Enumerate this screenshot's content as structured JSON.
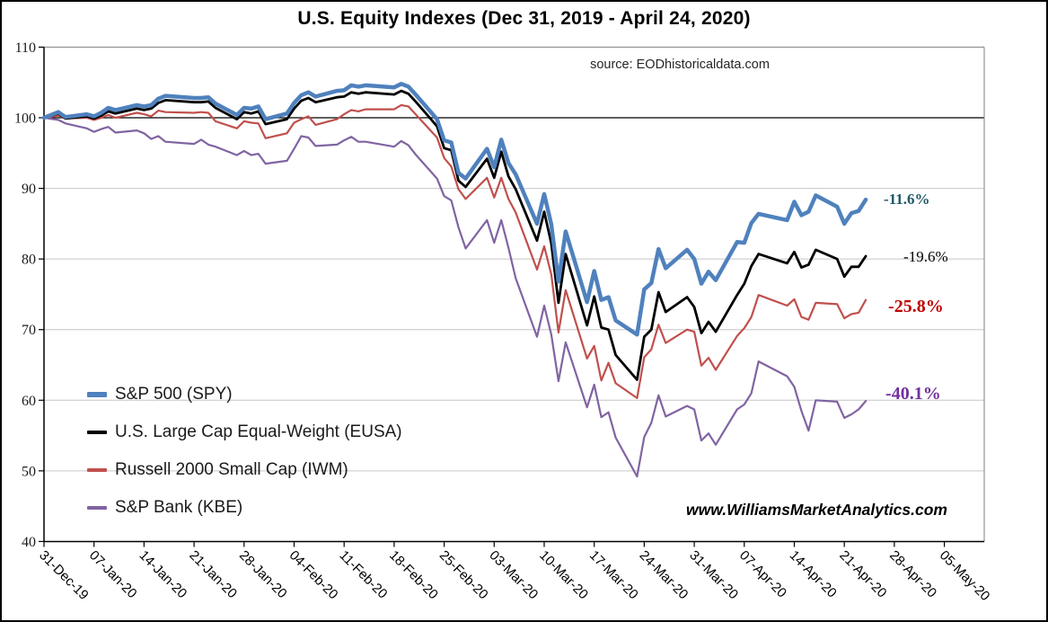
{
  "title": "U.S. Equity Indexes (Dec 31, 2019 - April 24, 2020)",
  "source_note": "source: EODhistoricaldata.com",
  "watermark": "www.WilliamsMarketAnalytics.com",
  "chart_data": {
    "type": "line",
    "title": "U.S. Equity Indexes (Dec 31, 2019 - April 24, 2020)",
    "ylim": [
      40,
      110
    ],
    "y_ticks": [
      40,
      50,
      60,
      70,
      80,
      90,
      100,
      110
    ],
    "reference_line": 100,
    "grid": true,
    "legend_position": "inside-left-middle",
    "x_tick_labels": [
      "31-Dec-19",
      "07-Jan-20",
      "14-Jan-20",
      "21-Jan-20",
      "28-Jan-20",
      "04-Feb-20",
      "11-Feb-20",
      "18-Feb-20",
      "25-Feb-20",
      "03-Mar-20",
      "10-Mar-20",
      "17-Mar-20",
      "24-Mar-20",
      "31-Mar-20",
      "07-Apr-20",
      "14-Apr-20",
      "21-Apr-20",
      "28-Apr-20",
      "05-May-20"
    ],
    "x": [
      "2019-12-31",
      "2020-01-02",
      "2020-01-03",
      "2020-01-06",
      "2020-01-07",
      "2020-01-08",
      "2020-01-09",
      "2020-01-10",
      "2020-01-13",
      "2020-01-14",
      "2020-01-15",
      "2020-01-16",
      "2020-01-17",
      "2020-01-21",
      "2020-01-22",
      "2020-01-23",
      "2020-01-24",
      "2020-01-27",
      "2020-01-28",
      "2020-01-29",
      "2020-01-30",
      "2020-01-31",
      "2020-02-03",
      "2020-02-04",
      "2020-02-05",
      "2020-02-06",
      "2020-02-07",
      "2020-02-10",
      "2020-02-11",
      "2020-02-12",
      "2020-02-13",
      "2020-02-14",
      "2020-02-18",
      "2020-02-19",
      "2020-02-20",
      "2020-02-21",
      "2020-02-24",
      "2020-02-25",
      "2020-02-26",
      "2020-02-27",
      "2020-02-28",
      "2020-03-02",
      "2020-03-03",
      "2020-03-04",
      "2020-03-05",
      "2020-03-06",
      "2020-03-09",
      "2020-03-10",
      "2020-03-11",
      "2020-03-12",
      "2020-03-13",
      "2020-03-16",
      "2020-03-17",
      "2020-03-18",
      "2020-03-19",
      "2020-03-20",
      "2020-03-23",
      "2020-03-24",
      "2020-03-25",
      "2020-03-26",
      "2020-03-27",
      "2020-03-30",
      "2020-03-31",
      "2020-04-01",
      "2020-04-02",
      "2020-04-03",
      "2020-04-06",
      "2020-04-07",
      "2020-04-08",
      "2020-04-09",
      "2020-04-13",
      "2020-04-14",
      "2020-04-15",
      "2020-04-16",
      "2020-04-17",
      "2020-04-20",
      "2020-04-21",
      "2020-04-22",
      "2020-04-23",
      "2020-04-24"
    ],
    "series": [
      {
        "name": "S&P 500 (SPY)",
        "color": "#4F81BD",
        "width": 4.5,
        "end_label": "-11.6%",
        "end_label_color": "#215968",
        "end_label_bold": true,
        "values": [
          100.0,
          100.8,
          100.1,
          100.5,
          100.2,
          100.7,
          101.4,
          101.1,
          101.8,
          101.6,
          101.8,
          102.7,
          103.1,
          102.8,
          102.8,
          102.9,
          102.0,
          100.4,
          101.4,
          101.3,
          101.6,
          99.8,
          100.6,
          102.1,
          103.2,
          103.6,
          103.0,
          103.8,
          103.9,
          104.6,
          104.4,
          104.6,
          104.3,
          104.8,
          104.4,
          103.3,
          99.8,
          96.8,
          96.5,
          92.2,
          91.4,
          95.6,
          93.0,
          96.9,
          93.6,
          92.0,
          85.0,
          89.2,
          84.9,
          76.8,
          83.9,
          73.9,
          78.3,
          74.2,
          74.6,
          71.3,
          69.3,
          75.7,
          76.6,
          81.4,
          78.7,
          81.3,
          80.0,
          76.5,
          78.2,
          77.0,
          82.4,
          82.3,
          85.1,
          86.4,
          85.5,
          88.1,
          86.2,
          86.7,
          89.0,
          87.4,
          85.0,
          86.5,
          86.8,
          88.4
        ]
      },
      {
        "name": "U.S. Large Cap Equal-Weight (EUSA)",
        "color": "#000000",
        "width": 2.8,
        "end_label": "-19.6%",
        "end_label_color": "#000000",
        "end_label_bold": false,
        "values": [
          100.0,
          100.6,
          99.9,
          100.2,
          99.9,
          100.3,
          100.9,
          100.6,
          101.3,
          101.1,
          101.3,
          102.1,
          102.5,
          102.2,
          102.2,
          102.3,
          101.4,
          99.8,
          100.8,
          100.6,
          100.9,
          99.1,
          99.8,
          101.3,
          102.4,
          102.8,
          102.2,
          102.9,
          103.0,
          103.6,
          103.4,
          103.6,
          103.3,
          103.8,
          103.4,
          102.3,
          98.8,
          95.7,
          95.4,
          91.1,
          90.2,
          94.2,
          91.5,
          95.2,
          91.7,
          89.9,
          82.6,
          86.7,
          82.2,
          73.8,
          80.7,
          70.6,
          74.7,
          70.3,
          70.0,
          66.4,
          62.9,
          69.0,
          70.0,
          75.3,
          72.5,
          74.6,
          73.2,
          69.5,
          71.1,
          69.7,
          74.9,
          76.5,
          79.0,
          80.7,
          79.4,
          81.0,
          78.8,
          79.2,
          81.3,
          80.0,
          77.5,
          78.9,
          78.9,
          80.4
        ]
      },
      {
        "name": "Russell 2000 Small Cap (IWM)",
        "color": "#C0504D",
        "width": 2.2,
        "end_label": "-25.8%",
        "end_label_color": "#C00000",
        "end_label_bold": true,
        "values": [
          100.0,
          100.3,
          99.9,
          100.0,
          99.7,
          100.0,
          100.4,
          100.0,
          100.7,
          100.5,
          100.2,
          101.0,
          100.8,
          100.7,
          100.8,
          100.7,
          99.5,
          98.5,
          99.5,
          99.3,
          99.2,
          97.1,
          97.8,
          99.3,
          99.8,
          100.2,
          99.0,
          99.8,
          100.5,
          101.1,
          100.9,
          101.2,
          101.2,
          101.8,
          101.6,
          100.5,
          97.2,
          94.3,
          93.1,
          89.9,
          88.5,
          91.5,
          88.7,
          91.5,
          88.5,
          86.6,
          78.5,
          81.8,
          77.8,
          69.6,
          75.6,
          65.9,
          67.7,
          62.8,
          65.3,
          62.4,
          60.3,
          66.1,
          67.2,
          70.7,
          68.1,
          70.0,
          69.7,
          64.9,
          66.0,
          64.3,
          69.1,
          70.2,
          71.8,
          74.9,
          73.4,
          74.3,
          71.8,
          71.4,
          73.8,
          73.6,
          71.6,
          72.2,
          72.4,
          74.2
        ]
      },
      {
        "name": "S&P Bank (KBE)",
        "color": "#8064A2",
        "width": 2.2,
        "end_label": "-40.1%",
        "end_label_color": "#7030A0",
        "end_label_bold": true,
        "values": [
          100.0,
          99.7,
          99.2,
          98.5,
          98.0,
          98.4,
          98.7,
          97.9,
          98.2,
          97.8,
          97.0,
          97.4,
          96.6,
          96.3,
          96.9,
          96.2,
          95.9,
          94.7,
          95.3,
          94.7,
          94.9,
          93.5,
          93.9,
          95.6,
          97.4,
          97.2,
          96.0,
          96.2,
          96.8,
          97.3,
          96.6,
          96.6,
          95.9,
          96.7,
          96.1,
          94.8,
          91.4,
          88.9,
          88.3,
          84.5,
          81.5,
          85.5,
          82.3,
          85.5,
          81.6,
          77.3,
          69.0,
          73.4,
          69.3,
          62.7,
          68.2,
          59.0,
          62.2,
          57.6,
          58.3,
          54.7,
          49.2,
          54.8,
          56.8,
          60.7,
          57.7,
          59.2,
          58.7,
          54.3,
          55.3,
          53.7,
          58.7,
          59.4,
          61.0,
          65.5,
          63.4,
          61.9,
          58.5,
          55.7,
          60.0,
          59.8,
          57.5,
          58.0,
          58.7,
          59.9
        ]
      }
    ]
  }
}
